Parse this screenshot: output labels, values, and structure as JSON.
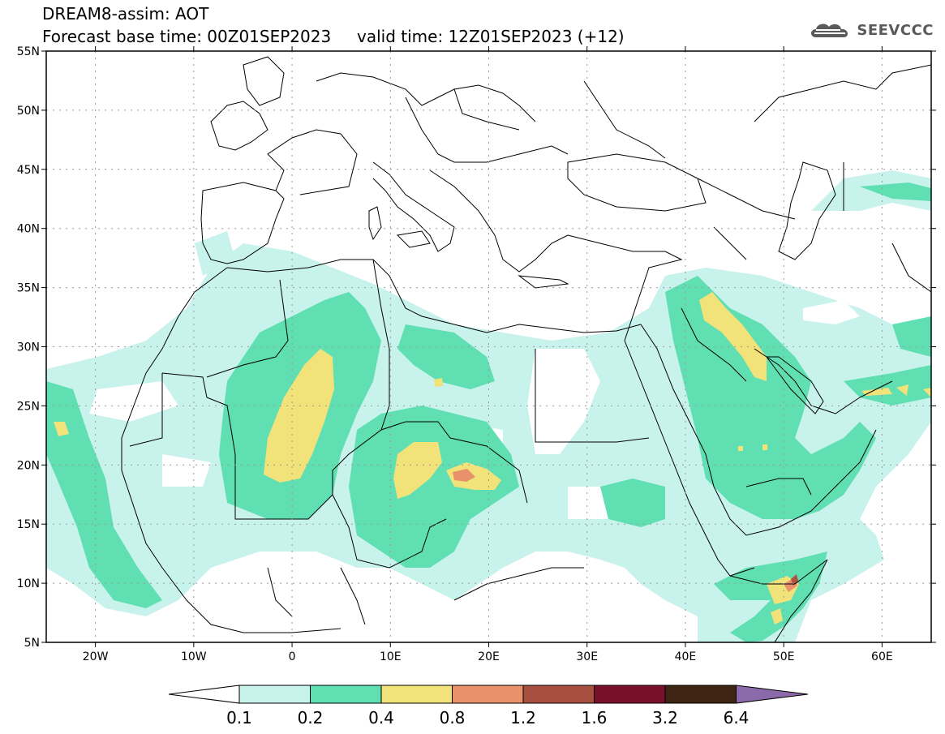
{
  "header": {
    "title": "DREAM8-assim: AOT",
    "base_time": "Forecast base time: 00Z01SEP2023",
    "valid_time": "valid time: 12Z01SEP2023 (+12)"
  },
  "logo": {
    "text": "SEEVCCC",
    "icon": "cloud-logo-icon"
  },
  "map": {
    "lon_range": [
      -25,
      65
    ],
    "lat_range": [
      5,
      55
    ],
    "lat_labels": [
      "55N",
      "50N",
      "45N",
      "40N",
      "35N",
      "30N",
      "25N",
      "20N",
      "15N",
      "10N",
      "5N"
    ],
    "lon_labels": [
      "20W",
      "10W",
      "0",
      "10E",
      "20E",
      "30E",
      "40E",
      "50E",
      "60E"
    ],
    "grid": "dotted"
  },
  "colorbar": {
    "labels": [
      "0.1",
      "0.2",
      "0.4",
      "0.8",
      "1.2",
      "1.6",
      "3.2",
      "6.4"
    ],
    "colors": [
      "#ffffff",
      "#c8f2ec",
      "#5fdfb2",
      "#f2e27a",
      "#e8916a",
      "#a85040",
      "#7a0f2a",
      "#3e2412",
      "#8a6aa8"
    ]
  },
  "colors": {
    "level1": "#c8f2ec",
    "level2": "#5fdfb2",
    "level3": "#f2e27a",
    "level4": "#e8916a",
    "level5": "#b05040"
  }
}
